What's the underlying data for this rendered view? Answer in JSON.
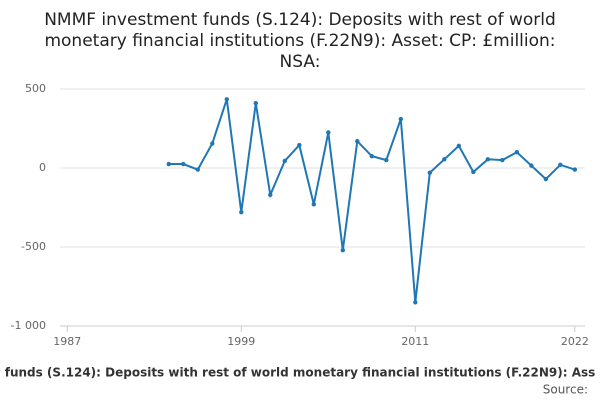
{
  "chart_data": {
    "type": "line",
    "title": [
      "NMMF investment funds (S.124): Deposits with rest of world",
      "monetary financial institutions (F.22N9): Asset: CP: £million:",
      "NSA:"
    ],
    "x_label": "funds (S.124): Deposits with rest of world monetary financial institutions (F.22N9): Ass",
    "source": "Source:",
    "x": [
      1994,
      1995,
      1996,
      1997,
      1998,
      1999,
      2000,
      2001,
      2002,
      2003,
      2004,
      2005,
      2006,
      2007,
      2008,
      2009,
      2010,
      2011,
      2012,
      2013,
      2014,
      2015,
      2016,
      2017,
      2018,
      2019,
      2020,
      2021,
      2022
    ],
    "series": [
      {
        "color": "#1f77b4",
        "values": [
          25,
          25,
          -10,
          155,
          435,
          -280,
          410,
          -170,
          45,
          145,
          -230,
          225,
          -520,
          170,
          75,
          50,
          310,
          -850,
          -30,
          55,
          140,
          -25,
          55,
          50,
          100,
          15,
          -70,
          20,
          -10
        ]
      }
    ],
    "xlim": [
      1986.5,
      2022.7
    ],
    "xticks": [
      1987,
      1999,
      2011,
      2022
    ],
    "ylim": [
      -1000,
      500
    ],
    "yticks": [
      500,
      0,
      -500,
      {
        "value": -1000,
        "label": "-1 000"
      }
    ],
    "grid": true
  }
}
